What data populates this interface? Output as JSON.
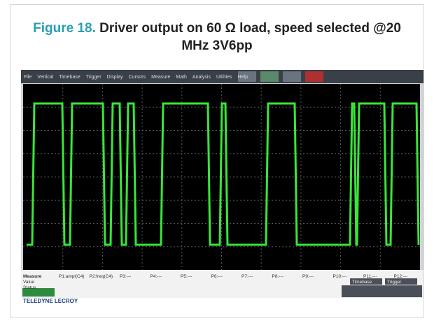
{
  "figure": {
    "label": "Figure 18.",
    "caption": "Driver output on 60 Ω load, speed selected @20 MHz 3V6pp"
  },
  "scope": {
    "menu": [
      "File",
      "Vertical",
      "Timebase",
      "Trigger",
      "Display",
      "Cursors",
      "Measure",
      "Math",
      "Analysis",
      "Utilities",
      "Help"
    ],
    "measure_header": [
      "Measure",
      "Value",
      "Status"
    ],
    "params": [
      "P1:ampl(C4)",
      "P2:freq(C4)",
      "P3:---",
      "P4:---",
      "P5:---",
      "P6:---",
      "P7:---",
      "P8:---",
      "P9:---",
      "P10:---",
      "P11:---",
      "P12:---"
    ],
    "panels": [
      "Timebase",
      "Trigger"
    ],
    "brand": "TELEDYNE LECROY"
  }
}
